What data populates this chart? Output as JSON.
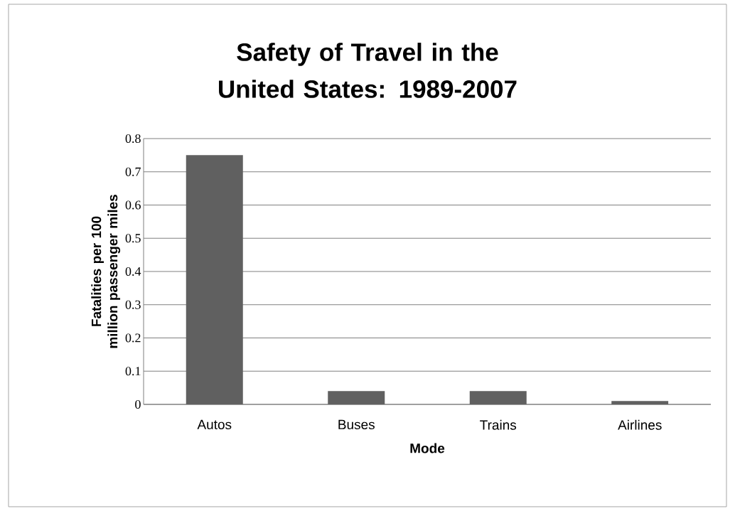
{
  "chart_data": {
    "type": "bar",
    "title": "Safety of Travel in the United States: 1989-2007",
    "xlabel": "Mode",
    "ylabel": "Fatalities per 100 million passenger miles",
    "categories": [
      "Autos",
      "Buses",
      "Trains",
      "Airlines"
    ],
    "values": [
      0.75,
      0.04,
      0.04,
      0.01
    ],
    "color": "#606060",
    "ylim": [
      0,
      0.8
    ],
    "yticks": [
      0,
      0.1,
      0.2,
      0.3,
      0.4,
      0.5,
      0.6,
      0.7,
      0.8
    ],
    "grid": "y"
  }
}
